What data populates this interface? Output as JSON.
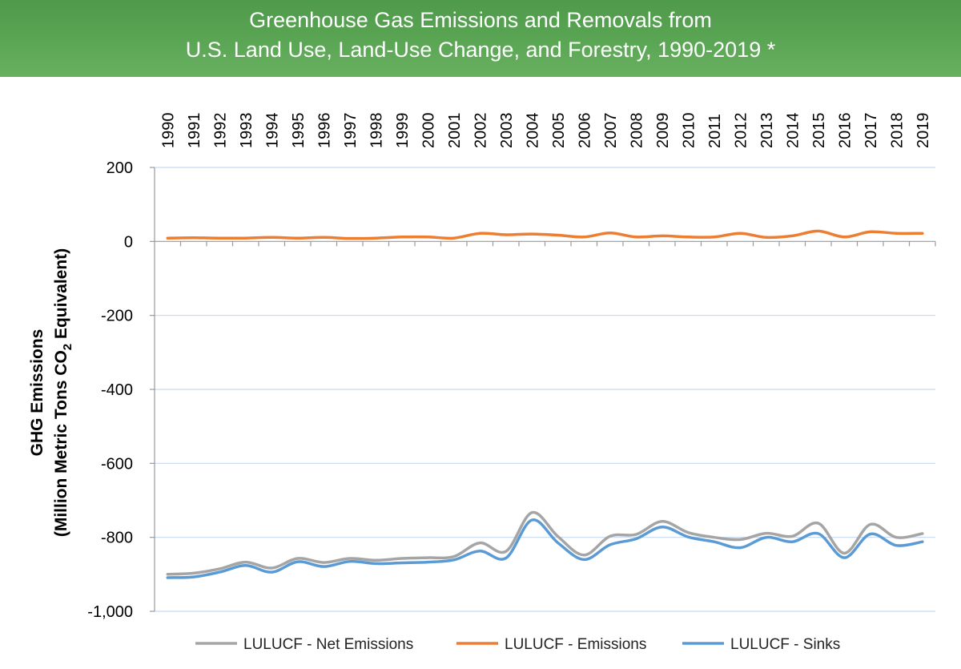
{
  "title": {
    "line1": "Greenhouse Gas Emissions and Removals from",
    "line2": "U.S. Land Use, Land-Use Change, and Forestry, 1990-2019 *"
  },
  "colors": {
    "net": "#a5a5a5",
    "emissions": "#ed7d31",
    "sinks": "#5b9bd5",
    "grid": "#c6d9f1",
    "axis": "#999999"
  },
  "chart_data": {
    "type": "line",
    "ylabel_line1": "GHG Emissions",
    "ylabel_line2_pre": "(Million Metric Tons CO",
    "ylabel_line2_sub": "2",
    "ylabel_line2_post": " Equivalent)",
    "ylim": [
      -1000,
      200
    ],
    "yticks": [
      200,
      0,
      -200,
      -400,
      -600,
      -800,
      -1000
    ],
    "ytick_labels": [
      "200",
      "0",
      "-200",
      "-400",
      "-600",
      "-800",
      "-1,000"
    ],
    "grid": true,
    "legend_position": "bottom",
    "x": [
      "1990",
      "1991",
      "1992",
      "1993",
      "1994",
      "1995",
      "1996",
      "1997",
      "1998",
      "1999",
      "2000",
      "2001",
      "2002",
      "2003",
      "2004",
      "2005",
      "2006",
      "2007",
      "2008",
      "2009",
      "2010",
      "2011",
      "2012",
      "2013",
      "2014",
      "2015",
      "2016",
      "2017",
      "2018",
      "2019"
    ],
    "series": [
      {
        "name": "LULUCF - Net Emissions",
        "color_key": "net",
        "values": [
          -900,
          -897,
          -885,
          -867,
          -883,
          -857,
          -868,
          -857,
          -862,
          -857,
          -855,
          -852,
          -815,
          -838,
          -733,
          -798,
          -848,
          -797,
          -792,
          -757,
          -787,
          -800,
          -806,
          -789,
          -797,
          -762,
          -843,
          -765,
          -800,
          -790
        ]
      },
      {
        "name": "LULUCF - Emissions",
        "color_key": "emissions",
        "values": [
          9,
          10,
          9,
          9,
          11,
          9,
          11,
          8,
          9,
          12,
          12,
          9,
          22,
          18,
          20,
          17,
          12,
          23,
          12,
          15,
          12,
          12,
          22,
          11,
          15,
          28,
          12,
          26,
          22,
          22
        ]
      },
      {
        "name": "LULUCF - Sinks",
        "color_key": "sinks",
        "values": [
          -909,
          -907,
          -894,
          -876,
          -894,
          -866,
          -879,
          -865,
          -871,
          -869,
          -867,
          -861,
          -837,
          -856,
          -753,
          -815,
          -860,
          -820,
          -804,
          -772,
          -799,
          -812,
          -828,
          -800,
          -812,
          -790,
          -855,
          -791,
          -822,
          -812
        ]
      }
    ]
  }
}
